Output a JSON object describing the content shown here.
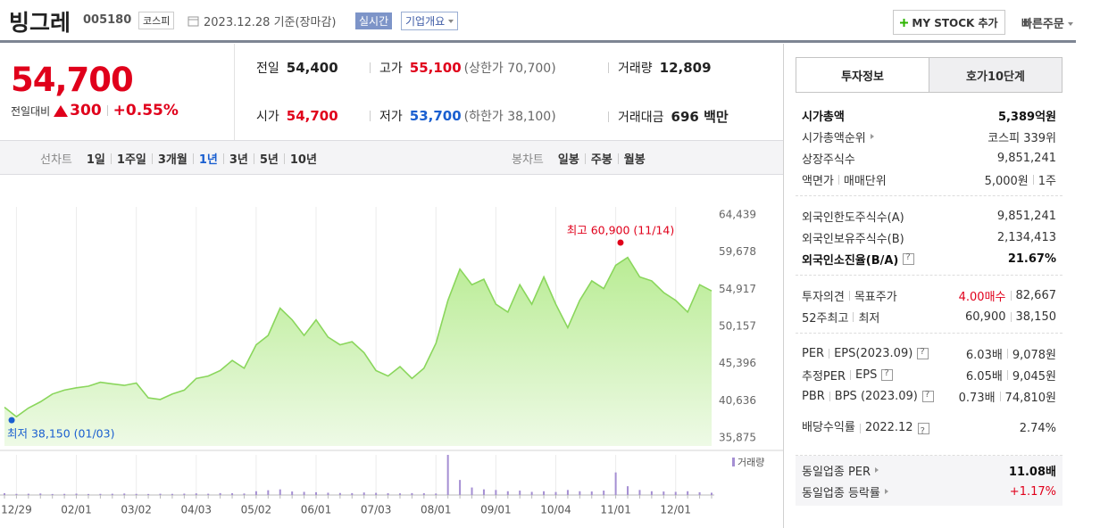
{
  "header": {
    "name": "빙그레",
    "code": "005180",
    "market": "코스피",
    "date": "2023.12.28 기준(장마감)",
    "realtime": "실시간",
    "company_info": "기업개요",
    "my_stock": "MY STOCK 추가",
    "quick_order": "빠른주문"
  },
  "quote": {
    "price": "54,700",
    "change_label": "전일대비",
    "change": "300",
    "change_rate": "+0.55%",
    "items": [
      {
        "label": "전일",
        "value": "54,400"
      },
      {
        "label": "고가",
        "value": "55,100",
        "sub": "(상한가 70,700)",
        "color": "#e0001b"
      },
      {
        "label": "거래량",
        "value": "12,809"
      },
      {
        "label": "시가",
        "value": "54,700",
        "color": "#e0001b"
      },
      {
        "label": "저가",
        "value": "53,700",
        "sub": "(하한가 38,100)",
        "color": "#1a5fd0"
      },
      {
        "label": "거래대금",
        "value": "696 백만"
      }
    ]
  },
  "chart_tabs": {
    "line_label": "선차트",
    "line": [
      "1일",
      "1주일",
      "3개월",
      "1년",
      "3년",
      "5년",
      "10년"
    ],
    "selected": 3,
    "candle_label": "봉차트",
    "candle": [
      "일봉",
      "주봉",
      "월봉"
    ]
  },
  "chart_data": {
    "type": "area",
    "color": "#8ad65c",
    "categories": [
      null,
      "12/29",
      null,
      null,
      null,
      null,
      "02/01",
      null,
      null,
      null,
      null,
      "03/02",
      null,
      null,
      null,
      null,
      "04/03",
      null,
      null,
      null,
      null,
      "05/02",
      null,
      null,
      null,
      null,
      "06/01",
      null,
      null,
      null,
      null,
      "07/03",
      null,
      null,
      null,
      null,
      "08/01",
      null,
      null,
      null,
      null,
      "09/01",
      null,
      null,
      null,
      null,
      "10/04",
      null,
      null,
      null,
      null,
      "11/01",
      null,
      null,
      null,
      null,
      "12/01",
      null,
      null,
      null
    ],
    "values": [
      39800,
      38600,
      39700,
      40500,
      41500,
      42000,
      42300,
      42500,
      43000,
      42800,
      42600,
      42900,
      41000,
      40800,
      41500,
      42000,
      43500,
      43800,
      44500,
      45800,
      44800,
      47800,
      49000,
      52500,
      51000,
      49000,
      51000,
      48800,
      47800,
      48200,
      46800,
      44500,
      43800,
      45000,
      43500,
      44800,
      48000,
      53500,
      57500,
      55500,
      56200,
      53000,
      52000,
      55500,
      53000,
      56500,
      53000,
      50000,
      53500,
      56000,
      55000,
      58000,
      59000,
      56500,
      56000,
      54500,
      53500,
      52000,
      55500,
      54700
    ],
    "ylim": [
      35875,
      64439
    ],
    "yticks": [
      {
        "value": 35875,
        "label": "35,875"
      },
      {
        "value": 40636,
        "label": "40,636"
      },
      {
        "value": 45396,
        "label": "45,396"
      },
      {
        "value": 50157,
        "label": "50,157"
      },
      {
        "value": 54917,
        "label": "54,917"
      },
      {
        "value": 59678,
        "label": "59,678"
      },
      {
        "value": 64439,
        "label": "64,439"
      }
    ],
    "grid": "x",
    "high": {
      "label": "최고 60,900 (11/14)",
      "value": 60900,
      "x": 51.4,
      "color": "#e0001b"
    },
    "low": {
      "label": "최저 38,150 (01/03)",
      "value": 38150,
      "x": 0.6,
      "color": "#1a5fd0"
    },
    "volume": {
      "name": "거래량",
      "color": "#a58fd3",
      "values": [
        14000,
        9000,
        10000,
        12000,
        8000,
        9000,
        11000,
        8000,
        9000,
        10000,
        12000,
        9000,
        8000,
        10000,
        9000,
        11000,
        13000,
        10000,
        15000,
        14000,
        12000,
        30000,
        38000,
        45000,
        28000,
        25000,
        22000,
        18000,
        16000,
        15000,
        20000,
        17000,
        14000,
        13000,
        15000,
        14000,
        12000,
        320000,
        120000,
        60000,
        45000,
        40000,
        30000,
        35000,
        25000,
        30000,
        24000,
        40000,
        30000,
        28000,
        35000,
        180000,
        70000,
        40000,
        30000,
        28000,
        25000,
        30000,
        22000,
        18000
      ]
    }
  },
  "invest": {
    "tabs": [
      "투자정보",
      "호가10단계"
    ],
    "sections": [
      {
        "rows": [
          {
            "label": [
              "시가총액"
            ],
            "value": [
              "5,389억원"
            ],
            "bold": [
              "label",
              "value"
            ]
          },
          {
            "label": [
              "시가총액순위"
            ],
            "value": [
              "코스피 339위"
            ],
            "arrow": true
          },
          {
            "label": [
              "상장주식수"
            ],
            "value": [
              "9,851,241"
            ]
          },
          {
            "label": [
              "액면가",
              "매매단위"
            ],
            "value": [
              "5,000원",
              "1주"
            ]
          }
        ]
      },
      {
        "rows": [
          {
            "label": [
              "외국인한도주식수(A)"
            ],
            "value": [
              "9,851,241"
            ]
          },
          {
            "label": [
              "외국인보유주식수(B)"
            ],
            "value": [
              "2,134,413"
            ]
          },
          {
            "label": [
              "외국인소진율(B/A)"
            ],
            "value": [
              "21.67%"
            ],
            "help": true,
            "bold": [
              "label",
              "value"
            ]
          }
        ]
      },
      {
        "rows": [
          {
            "label": [
              "투자의견",
              "목표주가"
            ],
            "value": [
              "4.00매수",
              "82,667"
            ],
            "value_color": "#e0001b"
          },
          {
            "label": [
              "52주최고",
              "최저"
            ],
            "value": [
              "60,900",
              "38,150"
            ]
          }
        ]
      },
      {
        "rows": [
          {
            "label": [
              "PER",
              "EPS(2023.09)"
            ],
            "value": [
              "6.03배",
              "9,078원"
            ],
            "help": true
          },
          {
            "label": [
              "추정PER",
              "EPS"
            ],
            "value": [
              "6.05배",
              "9,045원"
            ],
            "help": true
          },
          {
            "label": [
              "PBR",
              "BPS (2023.09)"
            ],
            "value": [
              "0.73배",
              "74,810원"
            ],
            "help": true
          },
          {
            "label": [
              "배당수익률",
              "2022.12"
            ],
            "value": [
              "2.74%"
            ],
            "help": true,
            "wrap": true
          }
        ]
      },
      {
        "rows": [
          {
            "label": [
              "동일업종 PER"
            ],
            "value": [
              "11.08배"
            ],
            "arrow": true,
            "bold": [
              "value"
            ]
          },
          {
            "label": [
              "동일업종 등락률"
            ],
            "value": [
              "+1.17%"
            ],
            "arrow": true,
            "value_color": "#e0001b"
          }
        ],
        "shaded": true
      }
    ]
  }
}
